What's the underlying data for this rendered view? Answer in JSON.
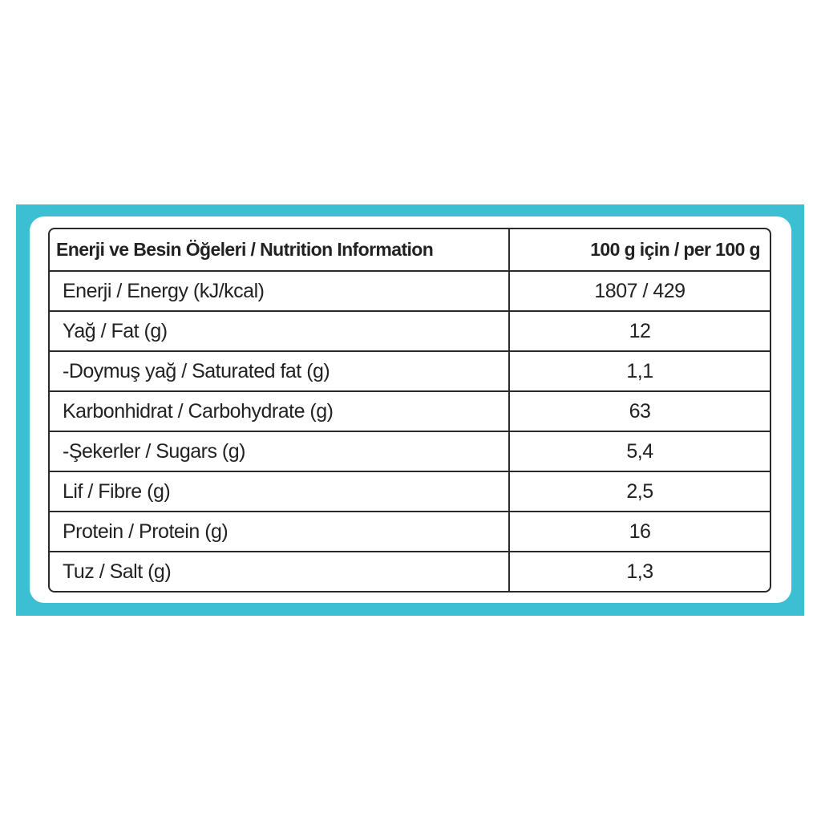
{
  "table": {
    "header": [
      "Enerji ve Besin Öğeleri / Nutrition Information",
      "100 g için / per 100 g"
    ],
    "rows": [
      [
        "Enerji / Energy (kJ/kcal)",
        "1807 / 429"
      ],
      [
        "Yağ / Fat (g)",
        "12"
      ],
      [
        "-Doymuş yağ / Saturated fat (g)",
        "1,1"
      ],
      [
        "Karbonhidrat / Carbohydrate (g)",
        "63"
      ],
      [
        "-Şekerler / Sugars (g)",
        "5,4"
      ],
      [
        "Lif / Fibre (g)",
        "2,5"
      ],
      [
        "Protein / Protein (g)",
        "16"
      ],
      [
        "Tuz / Salt (g)",
        "1,3"
      ]
    ]
  }
}
